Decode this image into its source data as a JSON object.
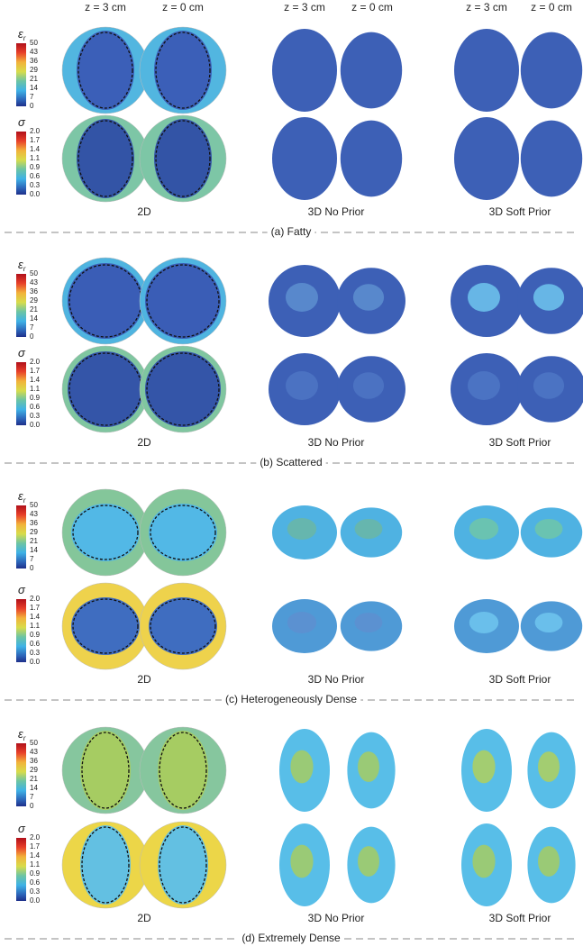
{
  "column_headers": [
    "z = 3 cm",
    "z = 0 cm",
    "z = 3 cm",
    "z = 0 cm",
    "z = 3 cm",
    "z = 0 cm"
  ],
  "colorbars": {
    "permittivity": {
      "symbol": "ε",
      "subscript": "r",
      "ticks": [
        "50",
        "43",
        "36",
        "29",
        "21",
        "14",
        "7",
        "0"
      ]
    },
    "conductivity": {
      "symbol": "σ",
      "ticks": [
        "2.0",
        "1.7",
        "1.4",
        "1.1",
        "0.9",
        "0.6",
        "0.3",
        "0.0"
      ]
    }
  },
  "method_labels": [
    "2D",
    "3D No Prior",
    "3D Soft Prior"
  ],
  "panels": [
    {
      "caption": "(a) Fatty"
    },
    {
      "caption": "(b) Scattered"
    },
    {
      "caption": "(c) Heterogeneously Dense"
    },
    {
      "caption": "(d) Extremely Dense"
    }
  ]
}
